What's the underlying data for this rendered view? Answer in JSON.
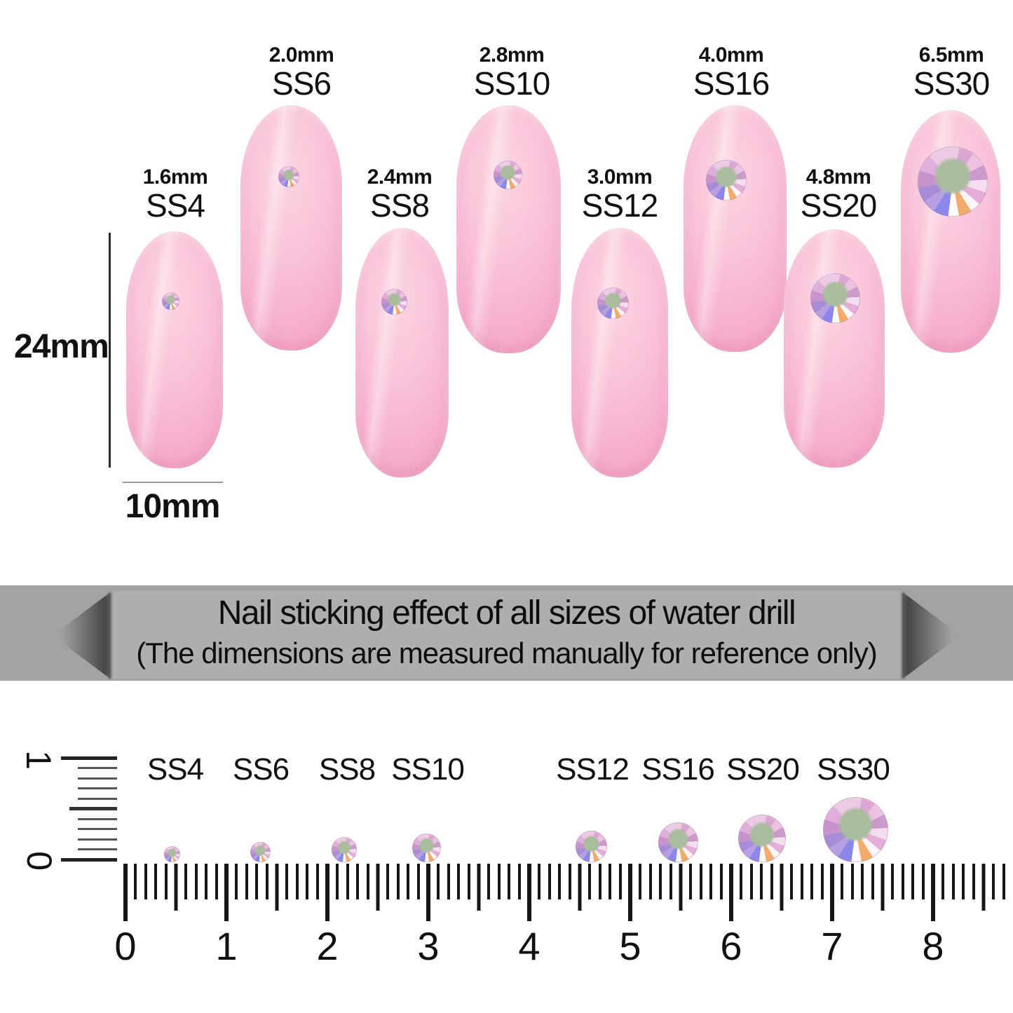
{
  "colors": {
    "nail_pink": "#f6adcb",
    "gem_center_dot": "#a9bd9e",
    "banner_gray": "#a6a6a6",
    "text": "#111111"
  },
  "nail_chart": {
    "sizes": [
      {
        "ss": "SS4",
        "mm": "1.6mm"
      },
      {
        "ss": "SS6",
        "mm": "2.0mm"
      },
      {
        "ss": "SS8",
        "mm": "2.4mm"
      },
      {
        "ss": "SS10",
        "mm": "2.8mm"
      },
      {
        "ss": "SS12",
        "mm": "3.0mm"
      },
      {
        "ss": "SS16",
        "mm": "4.0mm"
      },
      {
        "ss": "SS20",
        "mm": "4.8mm"
      },
      {
        "ss": "SS30",
        "mm": "6.5mm"
      }
    ],
    "nail_length_label": "24mm",
    "nail_width_label": "10mm"
  },
  "banner": {
    "title": "Nail sticking effect of all sizes of water drill",
    "subtitle": "(The dimensions are measured manually for reference only)"
  },
  "ruler": {
    "ss_labels": [
      "SS4",
      "SS6",
      "SS8",
      "SS10",
      "SS12",
      "SS16",
      "SS20",
      "SS30"
    ],
    "cm_numbers": [
      "0",
      "1",
      "2",
      "3",
      "4",
      "5",
      "6",
      "7",
      "8"
    ],
    "vertical_numbers": [
      "1",
      "0"
    ]
  }
}
